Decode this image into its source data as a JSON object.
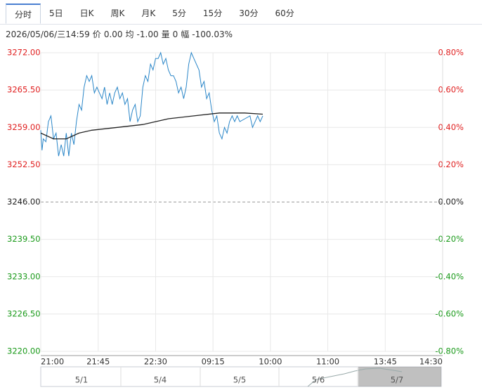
{
  "tabs": [
    "分时",
    "5日",
    "日K",
    "周K",
    "月K",
    "5分",
    "15分",
    "30分",
    "60分"
  ],
  "info": {
    "datetime": "2026/05/06/三14:59",
    "items": [
      {
        "label": "价",
        "value": "0.00"
      },
      {
        "label": "均",
        "value": "-1.00"
      },
      {
        "label": "量",
        "value": "0"
      },
      {
        "label": "幅",
        "value": "-100.03%"
      }
    ]
  },
  "chart_data": {
    "type": "line",
    "xlim": [
      0,
      315
    ],
    "xticks": [
      {
        "value": 0,
        "label": "21:00"
      },
      {
        "value": 45,
        "label": "21:45"
      },
      {
        "value": 90,
        "label": "22:30"
      },
      {
        "value": 135,
        "label": "09:15"
      },
      {
        "value": 180,
        "label": "10:00"
      },
      {
        "value": 225,
        "label": "11:00"
      },
      {
        "value": 270,
        "label": "13:45"
      },
      {
        "value": 315,
        "label": "14:30"
      }
    ],
    "ylim": [
      3220,
      3272
    ],
    "yticks": [
      {
        "value": 3272,
        "label": "3272.00"
      },
      {
        "value": 3265.5,
        "label": "3265.50"
      },
      {
        "value": 3259,
        "label": "3259.00"
      },
      {
        "value": 3252.5,
        "label": "3252.50"
      },
      {
        "value": 3246,
        "label": "3246.00"
      },
      {
        "value": 3239.5,
        "label": "3239.50"
      },
      {
        "value": 3233,
        "label": "3233.00"
      },
      {
        "value": 3226.5,
        "label": "3226.50"
      },
      {
        "value": 3220,
        "label": "3220.00"
      }
    ],
    "y2lim": [
      -0.8,
      0.8
    ],
    "y2ticks": [
      {
        "value": 0.8,
        "label": "0.80%"
      },
      {
        "value": 0.6,
        "label": "0.60%"
      },
      {
        "value": 0.4,
        "label": "0.40%"
      },
      {
        "value": 0.2,
        "label": "0.20%"
      },
      {
        "value": 0,
        "label": "0.00%"
      },
      {
        "value": -0.2,
        "label": "-0.20%"
      },
      {
        "value": -0.4,
        "label": "-0.40%"
      },
      {
        "value": -0.6,
        "label": "-0.60%"
      },
      {
        "value": -0.8,
        "label": "-0.80%"
      }
    ],
    "baseline": 3246,
    "up_color": "#e02020",
    "down_color": "#1a9a1a",
    "flat_color": "#222",
    "grid": true,
    "series": [
      {
        "color": "#2a86c8",
        "x": [
          0,
          1,
          2,
          4,
          6,
          8,
          10,
          12,
          14,
          16,
          18,
          20,
          22,
          24,
          26,
          28,
          30,
          32,
          34,
          36,
          38,
          40,
          42,
          44,
          46,
          48,
          50,
          52,
          54,
          56,
          58,
          60,
          62,
          64,
          66,
          68,
          70,
          72,
          74,
          76,
          78,
          80,
          82,
          84,
          86,
          88,
          90,
          92,
          94,
          96,
          98,
          100,
          102,
          104,
          106,
          108,
          110,
          112,
          114,
          116,
          118,
          120,
          122,
          124,
          126,
          128,
          130,
          132,
          134,
          136,
          138,
          140,
          142,
          144,
          146,
          148,
          150,
          152,
          154,
          156,
          160,
          164,
          166,
          168,
          170,
          172,
          174
        ],
        "values": [
          3258.5,
          3255,
          3257,
          3256.5,
          3260,
          3261,
          3257,
          3258,
          3254,
          3256,
          3254,
          3258,
          3254,
          3258,
          3256,
          3260,
          3263,
          3262,
          3266,
          3268,
          3267,
          3268,
          3265,
          3266,
          3265,
          3264,
          3266,
          3263,
          3265,
          3263,
          3265,
          3266,
          3264,
          3265,
          3263,
          3264,
          3260,
          3262,
          3263,
          3260,
          3261,
          3266,
          3268,
          3267,
          3270,
          3269,
          3271,
          3271,
          3272,
          3270,
          3271,
          3269,
          3268,
          3268,
          3267,
          3265,
          3266,
          3264,
          3266,
          3270,
          3272,
          3271,
          3270,
          3269,
          3266,
          3267,
          3264,
          3265,
          3262,
          3260,
          3261,
          3258,
          3257,
          3259,
          3258,
          3260,
          3261,
          3260,
          3261,
          3260,
          3260.5,
          3261,
          3259,
          3260,
          3261,
          3260,
          3261
        ]
      },
      {
        "color": "#222222",
        "x": [
          0,
          10,
          20,
          30,
          40,
          60,
          80,
          100,
          120,
          140,
          160,
          174
        ],
        "values": [
          3258,
          3257,
          3257,
          3258,
          3258.5,
          3259,
          3259.5,
          3260.5,
          3261,
          3261.5,
          3261.5,
          3261.3
        ]
      }
    ],
    "navigator": [
      "5/1",
      "5/4",
      "5/5",
      "5/6",
      "5/7"
    ]
  }
}
